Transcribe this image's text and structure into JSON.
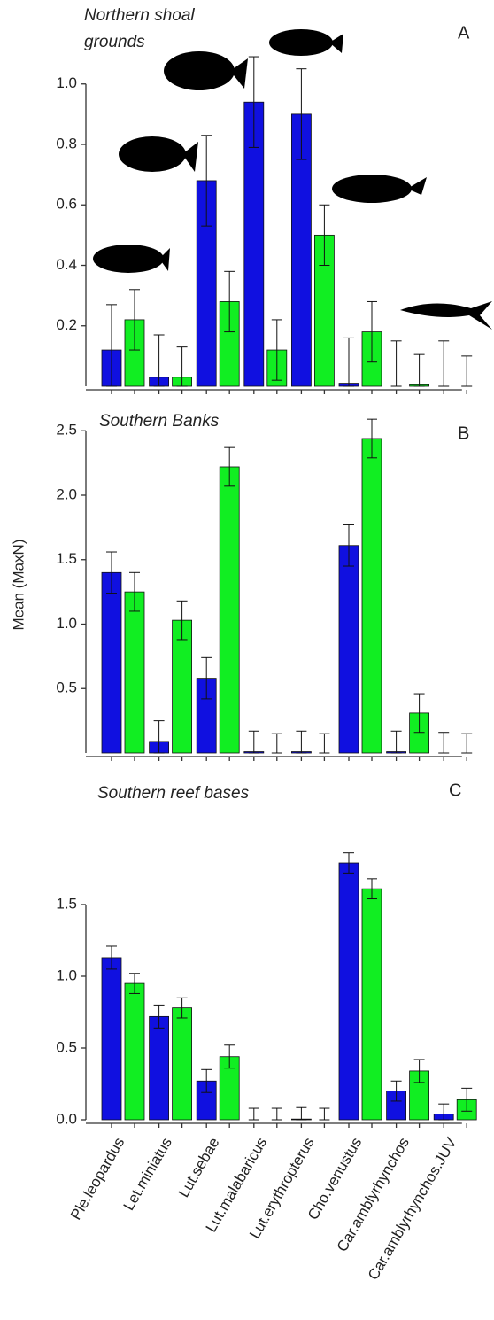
{
  "y_label": "Mean (MaxN)",
  "chart_data": [
    {
      "type": "bar",
      "title_lines": [
        "Northern shoal",
        "grounds"
      ],
      "panel_label": "A",
      "ylim": [
        0,
        1.1
      ],
      "yticks": [
        0.2,
        0.4,
        0.6,
        0.8,
        {
          "value": 1,
          "label": "1.0"
        }
      ],
      "series": [
        {
          "color": "#1010e0",
          "values": [
            0.12,
            0.03,
            0.68,
            0.94,
            0.9,
            0.01,
            0,
            0
          ],
          "errors": [
            0.15,
            0.14,
            0.15,
            0.15,
            0.15,
            0.15,
            0.15,
            0.15
          ]
        },
        {
          "color": "#11ee22",
          "values": [
            0.22,
            0.03,
            0.28,
            0.12,
            0.5,
            0.18,
            0.005,
            0
          ],
          "errors": [
            0.1,
            0.1,
            0.1,
            0.1,
            0.1,
            0.1,
            0.1,
            0.1
          ]
        }
      ]
    },
    {
      "type": "bar",
      "title_lines": [
        "Southern Banks"
      ],
      "panel_label": "B",
      "ylim": [
        0,
        2.6
      ],
      "yticks": [
        0.5,
        {
          "value": 1,
          "label": "1.0"
        },
        1.5,
        {
          "value": 2,
          "label": "2.0"
        },
        2.5
      ],
      "series": [
        {
          "color": "#1010e0",
          "values": [
            1.4,
            0.09,
            0.58,
            0.01,
            0.01,
            1.61,
            0.01,
            0
          ],
          "errors": [
            0.16,
            0.16,
            0.16,
            0.16,
            0.16,
            0.16,
            0.16,
            0.16
          ]
        },
        {
          "color": "#11ee22",
          "values": [
            1.25,
            1.03,
            2.22,
            0,
            0,
            2.44,
            0.31,
            0
          ],
          "errors": [
            0.15,
            0.15,
            0.15,
            0.15,
            0.15,
            0.15,
            0.15,
            0.15
          ]
        }
      ]
    },
    {
      "type": "bar",
      "title_lines": [
        "Southern reef bases"
      ],
      "panel_label": "C",
      "categories": [
        "Ple.leopardus",
        "Let.miniatus",
        "Lut.sebae",
        "Lut.malabaricus",
        "Lut.erythropterus",
        "Cho.venustus",
        "Car.amblyrhynchos",
        "Car.amblyrhynchos.JUV"
      ],
      "ylim": [
        0,
        1.9
      ],
      "yticks": [
        {
          "value": 0,
          "label": "0.0"
        },
        0.5,
        {
          "value": 1,
          "label": "1.0"
        },
        1.5
      ],
      "series": [
        {
          "color": "#1010e0",
          "values": [
            1.13,
            0.72,
            0.27,
            0,
            0.005,
            1.79,
            0.2,
            0.04
          ],
          "errors": [
            0.08,
            0.08,
            0.08,
            0.08,
            0.08,
            0.07,
            0.07,
            0.07
          ]
        },
        {
          "color": "#11ee22",
          "values": [
            0.95,
            0.78,
            0.44,
            0,
            0,
            1.61,
            0.34,
            0.14
          ],
          "errors": [
            0.07,
            0.07,
            0.08,
            0.08,
            0.08,
            0.07,
            0.08,
            0.08
          ]
        }
      ]
    }
  ]
}
